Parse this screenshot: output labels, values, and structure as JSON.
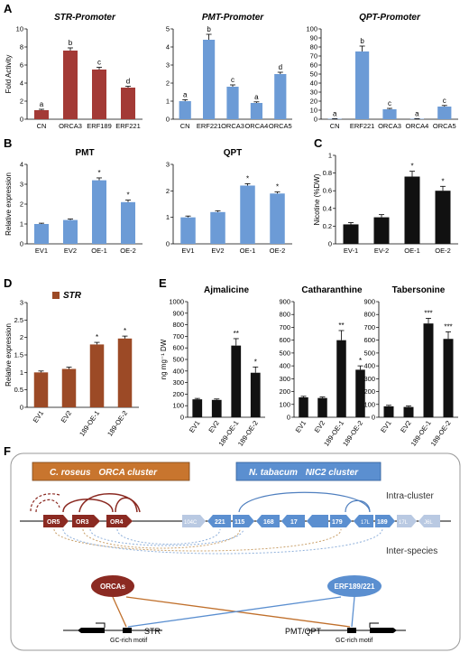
{
  "colors": {
    "red": "#A33A36",
    "blue": "#6C9BD6",
    "black": "#111111",
    "brown": "#9C4A26",
    "orange_box": "#C8752E",
    "blue_box": "#5B8FD0"
  },
  "panels": {
    "A": "A",
    "B": "B",
    "C": "C",
    "D": "D",
    "E": "E",
    "F": "F"
  },
  "axis_labels": {
    "fold_activity": "Fold Activity",
    "relative_expression": "Relative expression",
    "nicotine": "Nicotine (%DW)",
    "ng_dw": "ng mg⁻¹ DW"
  },
  "chart_data": [
    {
      "id": "A1",
      "type": "bar",
      "title": "STR-Promoter",
      "ylabel": "Fold Activity",
      "ylim": [
        0,
        10
      ],
      "yticks": [
        0,
        2,
        4,
        6,
        8,
        10
      ],
      "color": "#A33A36",
      "categories": [
        "CN",
        "ORCA3",
        "ERF189",
        "ERF221"
      ],
      "values": [
        1.0,
        7.6,
        5.5,
        3.5
      ],
      "errors": [
        0.1,
        0.3,
        0.25,
        0.15
      ],
      "labels": [
        "a",
        "b",
        "c",
        "d"
      ]
    },
    {
      "id": "A2",
      "type": "bar",
      "title": "PMT-Promoter",
      "ylabel": "",
      "ylim": [
        0,
        5
      ],
      "yticks": [
        0,
        1,
        2,
        3,
        4,
        5
      ],
      "color": "#6C9BD6",
      "categories": [
        "CN",
        "ERF221",
        "ORCA3",
        "ORCA4",
        "ORCA5"
      ],
      "values": [
        1.0,
        4.4,
        1.8,
        0.9,
        2.5
      ],
      "errors": [
        0.08,
        0.3,
        0.1,
        0.06,
        0.1
      ],
      "labels": [
        "a",
        "b",
        "c",
        "a",
        "d"
      ]
    },
    {
      "id": "A3",
      "type": "bar",
      "title": "QPT-Promoter",
      "ylabel": "",
      "ylim": [
        0,
        100
      ],
      "yticks": [
        0,
        10,
        20,
        30,
        40,
        50,
        60,
        70,
        80,
        90,
        100
      ],
      "color": "#6C9BD6",
      "categories": [
        "CN",
        "ERF221",
        "ORCA3",
        "ORCA4",
        "ORCA5"
      ],
      "values": [
        0.5,
        75,
        11,
        0.5,
        14
      ],
      "errors": [
        0.1,
        6,
        1,
        0.1,
        1.2
      ],
      "labels": [
        "a",
        "b",
        "c",
        "a",
        "c"
      ]
    },
    {
      "id": "B1",
      "type": "bar",
      "title": "PMT",
      "ylabel": "Relative expression",
      "ylim": [
        0,
        4
      ],
      "yticks": [
        0,
        1,
        2,
        3,
        4
      ],
      "color": "#6C9BD6",
      "categories": [
        "EV1",
        "EV2",
        "OE-1",
        "OE-2"
      ],
      "values": [
        1.0,
        1.2,
        3.2,
        2.1
      ],
      "errors": [
        0.04,
        0.05,
        0.12,
        0.1
      ],
      "labels": [
        "",
        "",
        "*",
        "*"
      ]
    },
    {
      "id": "B2",
      "type": "bar",
      "title": "QPT",
      "ylabel": "",
      "ylim": [
        0,
        3
      ],
      "yticks": [
        0,
        1,
        2,
        3
      ],
      "color": "#6C9BD6",
      "categories": [
        "EV1",
        "EV2",
        "OE-1",
        "OE-2"
      ],
      "values": [
        1.0,
        1.2,
        2.2,
        1.9
      ],
      "errors": [
        0.05,
        0.05,
        0.07,
        0.06
      ],
      "labels": [
        "",
        "",
        "*",
        "*"
      ]
    },
    {
      "id": "C",
      "type": "bar",
      "title": "",
      "ylabel": "Nicotine (%DW)",
      "ylim": [
        0,
        1
      ],
      "yticks": [
        0,
        0.2,
        0.4,
        0.6,
        0.8,
        1
      ],
      "color": "#111111",
      "categories": [
        "EV-1",
        "EV-2",
        "OE-1",
        "OE-2"
      ],
      "values": [
        0.22,
        0.3,
        0.76,
        0.6
      ],
      "errors": [
        0.02,
        0.03,
        0.06,
        0.05
      ],
      "labels": [
        "",
        "",
        "*",
        "*"
      ]
    },
    {
      "id": "D",
      "type": "bar",
      "title": "",
      "legend": "STR",
      "ylabel": "Relative expression",
      "ylim": [
        0,
        3
      ],
      "yticks": [
        0,
        0.5,
        1,
        1.5,
        2,
        2.5,
        3
      ],
      "color": "#9C4A26",
      "categories": [
        "EV1",
        "EV2",
        "189-OE-1",
        "189-OE-2"
      ],
      "values": [
        1.0,
        1.1,
        1.8,
        1.97
      ],
      "errors": [
        0.04,
        0.05,
        0.06,
        0.07
      ],
      "labels": [
        "",
        "",
        "*",
        "*"
      ]
    },
    {
      "id": "E1",
      "type": "bar",
      "title": "Ajmalicine",
      "ylabel": "ng mg⁻¹ DW",
      "ylim": [
        0,
        1000
      ],
      "yticks": [
        0,
        100,
        200,
        300,
        400,
        500,
        600,
        700,
        800,
        900,
        1000
      ],
      "color": "#111111",
      "categories": [
        "EV1",
        "EV2",
        "189-OE-1",
        "189-OE-2"
      ],
      "values": [
        155,
        150,
        620,
        385
      ],
      "errors": [
        8,
        8,
        60,
        50
      ],
      "labels": [
        "",
        "",
        "**",
        "*"
      ]
    },
    {
      "id": "E2",
      "type": "bar",
      "title": "Catharanthine",
      "ylabel": "",
      "ylim": [
        0,
        900
      ],
      "yticks": [
        0,
        100,
        200,
        300,
        400,
        500,
        600,
        700,
        800,
        900
      ],
      "color": "#111111",
      "categories": [
        "EV1",
        "EV2",
        "189-OE-1",
        "189-OE-2"
      ],
      "values": [
        155,
        150,
        600,
        370
      ],
      "errors": [
        8,
        8,
        75,
        30
      ],
      "labels": [
        "",
        "",
        "**",
        "*"
      ]
    },
    {
      "id": "E3",
      "type": "bar",
      "title": "Tabersonine",
      "ylabel": "",
      "ylim": [
        0,
        900
      ],
      "yticks": [
        0,
        100,
        200,
        300,
        400,
        500,
        600,
        700,
        800,
        900
      ],
      "color": "#111111",
      "categories": [
        "EV1",
        "EV2",
        "189-OE-1",
        "189-OE-2"
      ],
      "values": [
        85,
        80,
        730,
        610
      ],
      "errors": [
        8,
        8,
        40,
        55
      ],
      "labels": [
        "",
        "",
        "***",
        "***"
      ]
    }
  ],
  "diagram": {
    "orca_cluster_species": "C. roseus",
    "orca_cluster_name": "ORCA cluster",
    "nic2_cluster_species": "N. tabacum",
    "nic2_cluster_name": "NIC2 cluster",
    "intra_cluster": "Intra-cluster",
    "inter_species": "Inter-species",
    "orca_genes": [
      "OR5",
      "OR3",
      "OR4"
    ],
    "nic_genes": [
      "104C",
      "221",
      "115",
      "168",
      "17",
      "179",
      "17L",
      "189",
      "17L",
      "J6L"
    ],
    "orcas_label": "ORCAs",
    "erf_label": "ERF189/221",
    "str_label": "STR",
    "pmt_qpt_label": "PMT/QPT",
    "gc_motif_1": "GC-rich motif",
    "gc_motif_2": "GC-rich motif"
  }
}
